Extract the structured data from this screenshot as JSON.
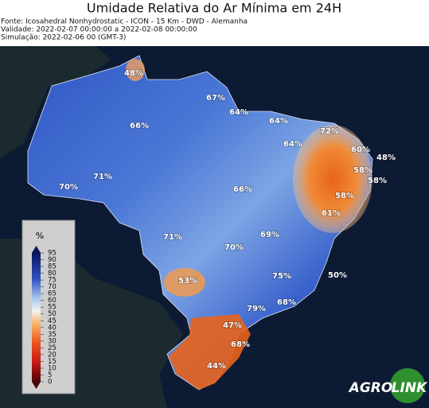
{
  "header": {
    "title": "Umidade Relativa do Ar Mínima em 24H",
    "lines": [
      "Fonte: Icosahedral Nonhydrostatic - ICON - 15 Km - DWD - Alemanha",
      "Validade: 2022-02-07 00:00:00 a 2022-02-08 00:00:00",
      "Simulação: 2022-02-06 00 (GMT-3)"
    ]
  },
  "map": {
    "labels": [
      "48%",
      "67%",
      "64%",
      "66%",
      "64%",
      "72%",
      "64%",
      "60%",
      "48%",
      "71%",
      "58%",
      "58%",
      "70%",
      "66%",
      "58%",
      "61%",
      "69%",
      "71%",
      "70%",
      "53%",
      "75%",
      "50%",
      "68%",
      "79%",
      "47%",
      "68%",
      "44%"
    ]
  },
  "legend": {
    "title": "%",
    "ticks": [
      "95",
      "90",
      "85",
      "80",
      "75",
      "70",
      "65",
      "60",
      "55",
      "50",
      "45",
      "40",
      "35",
      "30",
      "25",
      "20",
      "15",
      "10",
      "5",
      "0"
    ]
  },
  "logo": {
    "left": "AGRO",
    "right": "LINK"
  }
}
